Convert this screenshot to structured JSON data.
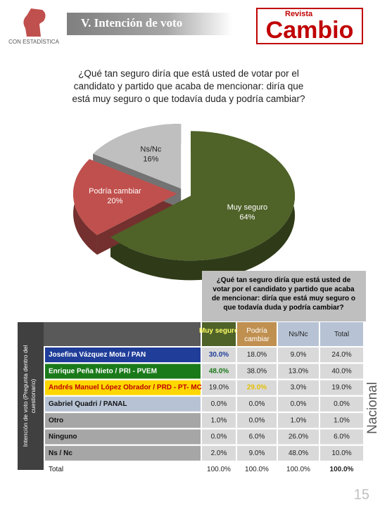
{
  "header": {
    "title": "V. Intención de voto",
    "logo_text": "CON ESTADÍSTICA",
    "brand_small": "Revista",
    "brand": "Cambio"
  },
  "chart_data": {
    "type": "pie",
    "title": "¿Qué tan seguro diría que está usted de votar por el candidato y partido que acaba de mencionar: diría que está muy seguro o que todavía duda y podría cambiar?",
    "categories": [
      "Muy seguro",
      "Podría cambiar",
      "Ns/Nc"
    ],
    "values": [
      64,
      20,
      16
    ],
    "value_labels": [
      "64%",
      "20%",
      "16%"
    ],
    "colors": [
      "#4f6228",
      "#c0504d",
      "#bfbfbf"
    ]
  },
  "table": {
    "title": "¿Qué tan seguro diría que está usted de votar por el candidato y partido que acaba de mencionar: diría que está muy seguro o que todavía duda y podría cambiar?",
    "header": [
      "Muy seguro",
      "Podría cambiar",
      "Ns/Nc",
      "Total"
    ],
    "rows": [
      [
        "Josefina Vázquez Mota / PAN",
        "30.0%",
        "18.0%",
        "9.0%",
        "24.0%"
      ],
      [
        "Enrique Peña Nieto / PRI - PVEM",
        "48.0%",
        "38.0%",
        "13.0%",
        "40.0%"
      ],
      [
        "Andrés Manuel López Obrador / PRD - PT- MC",
        "19.0%",
        "29.0%",
        "3.0%",
        "19.0%"
      ],
      [
        "Gabriel Quadri / PANAL",
        "0.0%",
        "0.0%",
        "0.0%",
        "0.0%"
      ],
      [
        "Otro",
        "1.0%",
        "0.0%",
        "1.0%",
        "1.0%"
      ],
      [
        "Ninguno",
        "0.0%",
        "6.0%",
        "26.0%",
        "6.0%"
      ],
      [
        "Ns / Nc",
        "2.0%",
        "9.0%",
        "48.0%",
        "10.0%"
      ],
      [
        "Total",
        "100.0%",
        "100.0%",
        "100.0%",
        "100.0%"
      ]
    ],
    "side_label": "Intención de voto (Pregunta dentro del cuestionario)"
  },
  "footer": {
    "scope": "Nacional",
    "page": "15"
  }
}
